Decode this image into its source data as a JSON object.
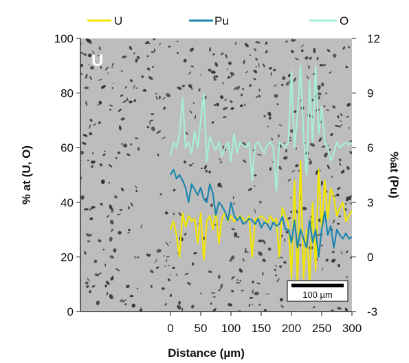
{
  "colors": {
    "U": "#f2e600",
    "Pu": "#1b86ad",
    "O": "#a6efd6",
    "background_micrograph": "#bdbdbd",
    "pores": "#1f1f1f"
  },
  "chart_data": {
    "type": "line",
    "background": "SEM micrograph (grey with dark pores)",
    "panel_label": "U",
    "scale_bar_label": "100 µm",
    "xlabel": "Distance (µm)",
    "ylabel_left": "% at (U, O)",
    "ylabel_right": "%at (Pu)",
    "xlim": [
      0,
      300
    ],
    "ylim_left": [
      0,
      100
    ],
    "ylim_right": [
      -3,
      12
    ],
    "x_ticks": [
      "0",
      "50",
      "100",
      "150",
      "200",
      "250",
      "300"
    ],
    "y_ticks_left": [
      "0",
      "20",
      "40",
      "60",
      "80",
      "100"
    ],
    "y_ticks_right": [
      "-3",
      "0",
      "3",
      "6",
      "9",
      "12"
    ],
    "legend_position": "top",
    "series": [
      {
        "name": "U",
        "axis": "left",
        "x": [
          0,
          5,
          10,
          15,
          20,
          25,
          30,
          35,
          40,
          45,
          50,
          55,
          60,
          65,
          70,
          75,
          80,
          85,
          90,
          95,
          100,
          105,
          110,
          115,
          120,
          125,
          130,
          135,
          140,
          145,
          150,
          155,
          160,
          165,
          170,
          175,
          180,
          185,
          190,
          195,
          200,
          205,
          210,
          215,
          220,
          225,
          230,
          235,
          240,
          245,
          250,
          255,
          260,
          265,
          270,
          275,
          280,
          285,
          290,
          295,
          300
        ],
        "values": [
          30,
          33,
          28,
          20,
          36,
          31,
          35,
          33,
          34,
          25,
          36,
          19,
          33,
          35,
          30,
          37,
          25,
          34,
          36,
          33,
          35,
          33,
          34,
          35,
          34,
          33,
          35,
          20,
          34,
          34,
          35,
          34,
          32,
          35,
          33,
          34,
          20,
          38,
          35,
          32,
          12,
          48,
          10,
          55,
          12,
          30,
          10,
          40,
          15,
          52,
          30,
          48,
          34,
          45,
          42,
          35,
          38,
          40,
          33,
          35,
          37
        ]
      },
      {
        "name": "Pu",
        "axis": "right",
        "x": [
          0,
          5,
          10,
          15,
          20,
          25,
          30,
          35,
          40,
          45,
          50,
          55,
          60,
          65,
          70,
          75,
          80,
          85,
          90,
          95,
          100,
          105,
          110,
          115,
          120,
          125,
          130,
          135,
          140,
          145,
          150,
          155,
          160,
          165,
          170,
          175,
          180,
          185,
          190,
          195,
          200,
          205,
          210,
          215,
          220,
          225,
          230,
          235,
          240,
          245,
          250,
          255,
          260,
          265,
          270,
          275,
          280,
          285,
          290,
          295,
          300
        ],
        "values": [
          4.5,
          4.8,
          4.3,
          4.5,
          4.2,
          3.8,
          3.0,
          4.0,
          3.7,
          3.4,
          3.8,
          3.2,
          3.0,
          4.0,
          3.5,
          2.3,
          3.0,
          2.8,
          2.5,
          2.0,
          3.0,
          2.3,
          2.0,
          2.2,
          1.8,
          1.9,
          2.1,
          2.0,
          1.8,
          2.1,
          1.6,
          1.9,
          1.8,
          1.5,
          1.9,
          1.7,
          1.8,
          2.2,
          1.5,
          1.5,
          0.8,
          2.0,
          0.5,
          1.5,
          1.0,
          0.5,
          2.0,
          0.8,
          1.5,
          0.0,
          1.5,
          2.5,
          1.2,
          1.7,
          0.5,
          1.5,
          1.2,
          1.0,
          1.3,
          1.0,
          1.1
        ]
      },
      {
        "name": "O",
        "axis": "left",
        "x": [
          0,
          5,
          10,
          15,
          20,
          25,
          30,
          35,
          40,
          45,
          50,
          55,
          60,
          65,
          70,
          75,
          80,
          85,
          90,
          95,
          100,
          105,
          110,
          115,
          120,
          125,
          130,
          135,
          140,
          145,
          150,
          155,
          160,
          165,
          170,
          175,
          180,
          185,
          190,
          195,
          200,
          205,
          210,
          215,
          220,
          225,
          230,
          235,
          240,
          245,
          250,
          255,
          260,
          265,
          270,
          275,
          280,
          285,
          290,
          295,
          300
        ],
        "values": [
          57,
          62,
          60,
          65,
          78,
          60,
          62,
          58,
          66,
          60,
          70,
          80,
          55,
          64,
          61,
          59,
          62,
          57,
          60,
          62,
          55,
          65,
          58,
          62,
          61,
          60,
          62,
          48,
          61,
          62,
          60,
          58,
          61,
          62,
          60,
          44,
          62,
          61,
          60,
          62,
          88,
          60,
          72,
          90,
          64,
          50,
          85,
          62,
          90,
          65,
          75,
          62,
          60,
          55,
          58,
          62,
          60,
          61,
          62,
          61,
          62
        ]
      }
    ]
  }
}
